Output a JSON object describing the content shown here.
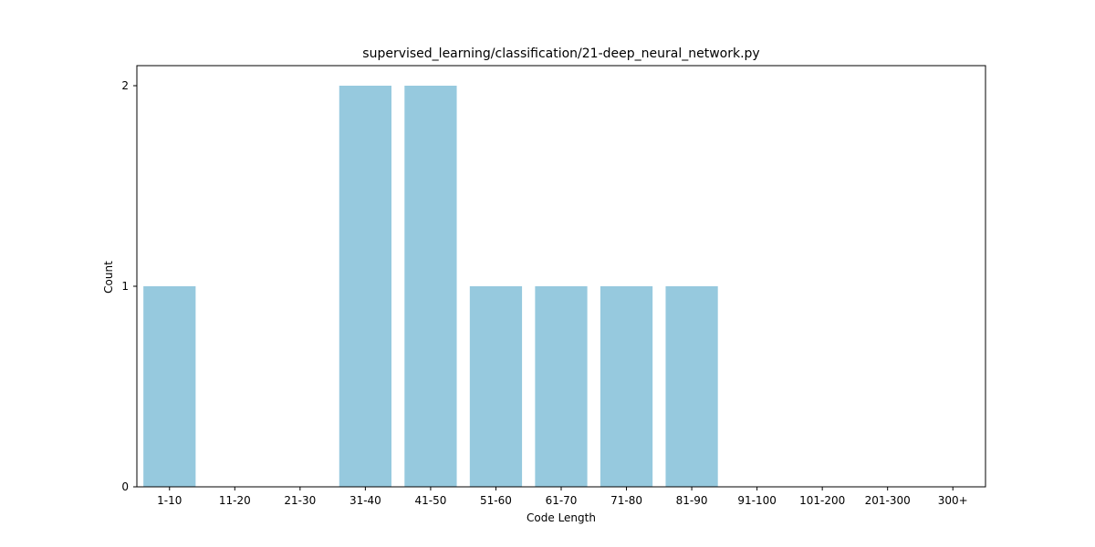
{
  "chart_data": {
    "type": "bar",
    "title": "supervised_learning/classification/21-deep_neural_network.py",
    "xlabel": "Code Length",
    "ylabel": "Count",
    "categories": [
      "1-10",
      "11-20",
      "21-30",
      "31-40",
      "41-50",
      "51-60",
      "61-70",
      "71-80",
      "81-90",
      "91-100",
      "101-200",
      "201-300",
      "300+"
    ],
    "values": [
      1,
      0,
      0,
      2,
      2,
      1,
      1,
      1,
      1,
      0,
      0,
      0,
      0
    ],
    "ylim": [
      0,
      2.1
    ],
    "yticks": [
      0,
      1,
      2
    ],
    "grid": false,
    "bar_color": "#96c9de"
  }
}
